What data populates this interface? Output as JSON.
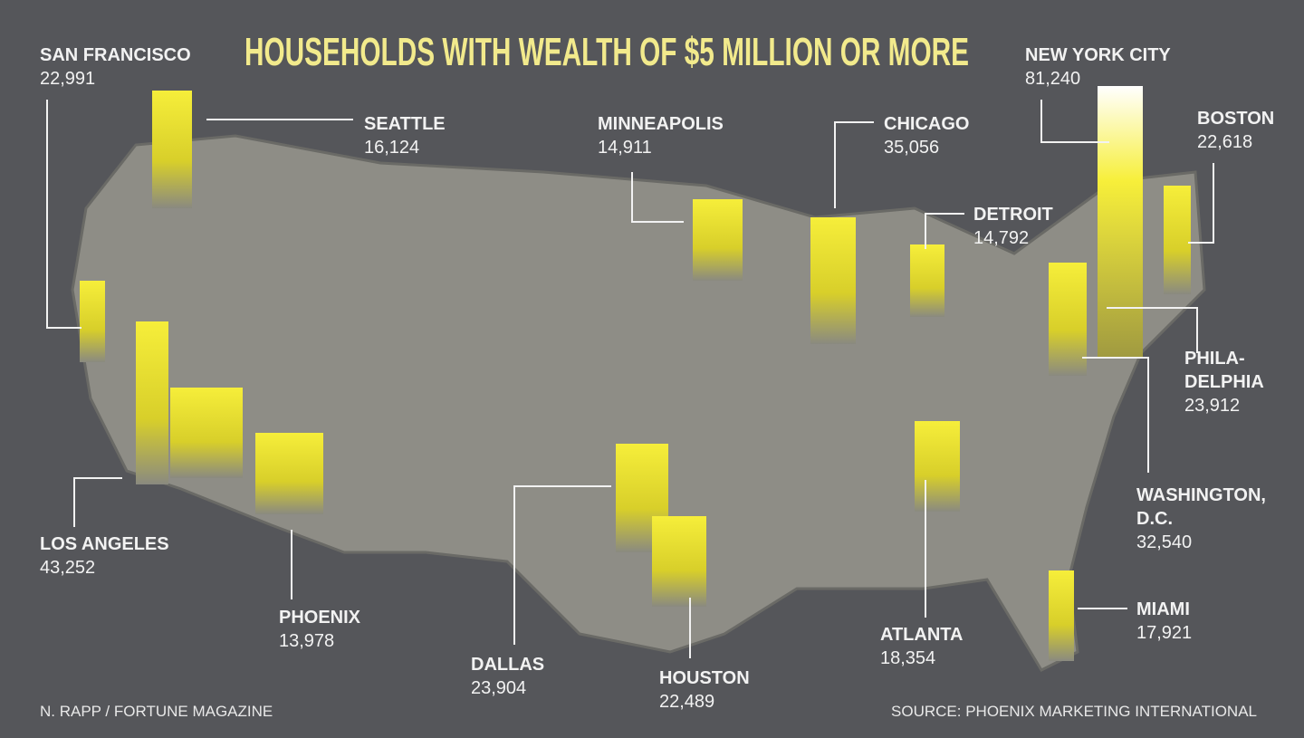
{
  "title": "HOUSEHOLDS WITH WEALTH OF $5 MILLION OR MORE",
  "cities": [
    {
      "name": [
        "SAN FRANCISCO"
      ],
      "value": "22,991"
    },
    {
      "name": [
        "SEATTLE"
      ],
      "value": "16,124"
    },
    {
      "name": [
        "MINNEAPOLIS"
      ],
      "value": "14,911"
    },
    {
      "name": [
        "CHICAGO"
      ],
      "value": "35,056"
    },
    {
      "name": [
        "DETROIT"
      ],
      "value": "14,792"
    },
    {
      "name": [
        "NEW YORK CITY"
      ],
      "value": "81,240"
    },
    {
      "name": [
        "BOSTON"
      ],
      "value": "22,618"
    },
    {
      "name": [
        "PHILA-",
        "DELPHIA"
      ],
      "value": "23,912"
    },
    {
      "name": [
        "WASHINGTON,",
        "D.C."
      ],
      "value": "32,540"
    },
    {
      "name": [
        "MIAMI"
      ],
      "value": "17,921"
    },
    {
      "name": [
        "ATLANTA"
      ],
      "value": "18,354"
    },
    {
      "name": [
        "HOUSTON"
      ],
      "value": "22,489"
    },
    {
      "name": [
        "DALLAS"
      ],
      "value": "23,904"
    },
    {
      "name": [
        "PHOENIX"
      ],
      "value": "13,978"
    },
    {
      "name": [
        "LOS ANGELES"
      ],
      "value": "43,252"
    }
  ],
  "credit": "N. RAPP / FORTUNE MAGAZINE",
  "source": "SOURCE: PHOENIX MARKETING INTERNATIONAL"
}
